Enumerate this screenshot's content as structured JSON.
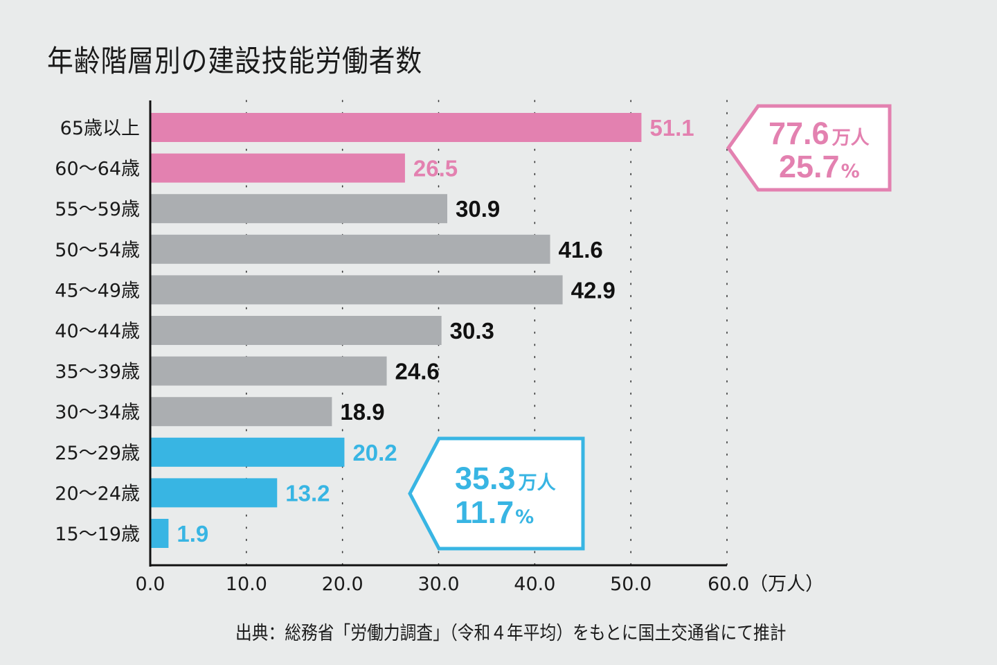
{
  "chart_data": {
    "type": "bar",
    "orientation": "horizontal",
    "title": "年齢階層別の建設技能労働者数",
    "categories": [
      "65歳以上",
      "60〜64歳",
      "55〜59歳",
      "50〜54歳",
      "45〜49歳",
      "40〜44歳",
      "35〜39歳",
      "30〜34歳",
      "25〜29歳",
      "20〜24歳",
      "15〜19歳"
    ],
    "values": [
      51.1,
      26.5,
      30.9,
      41.6,
      42.9,
      30.3,
      24.6,
      18.9,
      20.2,
      13.2,
      1.9
    ],
    "value_labels": [
      "51.1",
      "26.5",
      "30.9",
      "41.6",
      "42.9",
      "30.3",
      "24.6",
      "18.9",
      "20.2",
      "13.2",
      "1.9"
    ],
    "groups": [
      "senior",
      "senior",
      "middle",
      "middle",
      "middle",
      "middle",
      "middle",
      "middle",
      "young",
      "young",
      "young"
    ],
    "xlabel": "",
    "xunit": "（万人）",
    "ylabel": "",
    "xlim": [
      0,
      60
    ],
    "xticks": [
      0,
      10,
      20,
      30,
      40,
      50,
      60
    ],
    "xtick_labels": [
      "0.0",
      "10.0",
      "20.0",
      "30.0",
      "40.0",
      "50.0",
      "60.0"
    ],
    "grid": "vertical-dotted",
    "colors": {
      "senior": "#e381b0",
      "middle": "#abaeb1",
      "young": "#38b5e3",
      "middle_label": "#111111"
    },
    "annotations": [
      {
        "group": "senior",
        "total": "77.6",
        "total_unit": "万人",
        "share": "25.7",
        "share_unit": "%",
        "color": "#e381b0",
        "placement": "right"
      },
      {
        "group": "young",
        "total": "35.3",
        "total_unit": "万人",
        "share": "11.7",
        "share_unit": "%",
        "color": "#38b5e3",
        "placement": "bottom-right"
      }
    ]
  },
  "source": "出典：総務省「労働力調査」（令和４年平均）をもとに国土交通省にて推計"
}
